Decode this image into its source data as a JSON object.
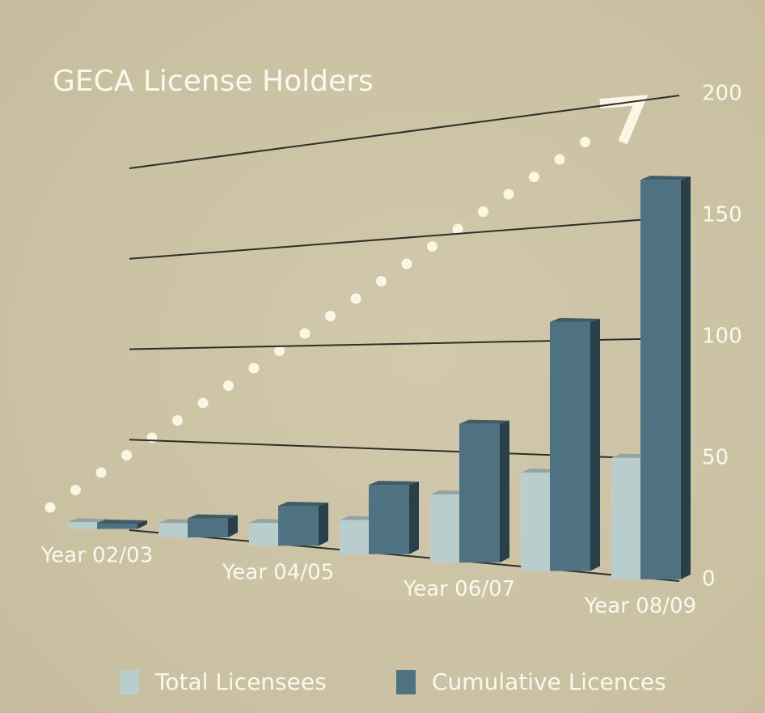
{
  "chart_data": {
    "type": "bar3d",
    "title": "GECA License Holders",
    "categories": [
      "Year 02/03",
      null,
      "Year 04/05",
      null,
      "Year 06/07",
      null,
      "Year 08/09"
    ],
    "series": [
      {
        "name": "Total Licensees",
        "color": "#b9cdcc",
        "values": [
          2,
          6,
          10,
          15,
          30,
          42,
          50
        ]
      },
      {
        "name": "Cumulative Licences",
        "color": "#4f7282",
        "values": [
          3,
          10,
          20,
          33,
          63,
          108,
          166
        ]
      }
    ],
    "ylim": [
      0,
      200
    ],
    "yticks": [
      0,
      50,
      100,
      150,
      200
    ],
    "grid": true,
    "legend": "bottom"
  }
}
